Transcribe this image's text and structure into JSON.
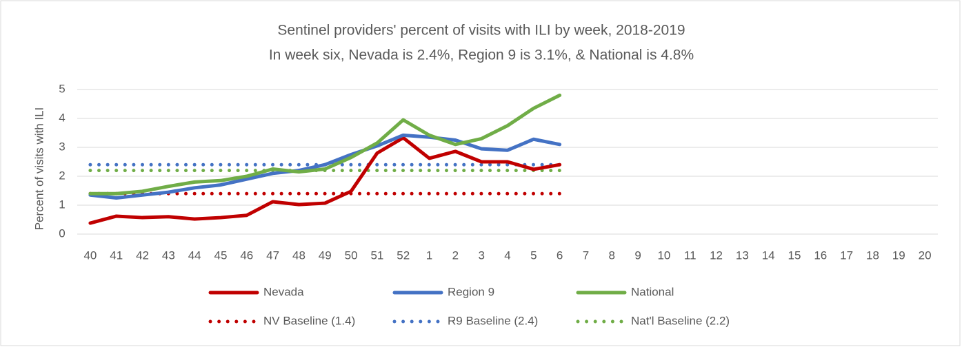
{
  "chart_data": {
    "type": "line",
    "title": "Sentinel providers' percent of visits with ILI by week, 2018-2019",
    "subtitle": "In week six, Nevada is 2.4%, Region 9 is 3.1%, & National is 4.8%",
    "y_label": "Percent of visits with ILI",
    "categories": [
      "40",
      "41",
      "42",
      "43",
      "44",
      "45",
      "46",
      "47",
      "48",
      "49",
      "50",
      "51",
      "52",
      "1",
      "2",
      "3",
      "4",
      "5",
      "6",
      "7",
      "8",
      "9",
      "10",
      "11",
      "12",
      "13",
      "14",
      "15",
      "16",
      "17",
      "18",
      "19",
      "20"
    ],
    "ylim": [
      0,
      5
    ],
    "yticks": [
      0,
      1,
      2,
      3,
      4,
      5
    ],
    "grid": true,
    "legend": "bottom",
    "series": [
      {
        "name": "Nevada",
        "color": "#c00000",
        "style": "solid",
        "values": [
          0.38,
          0.62,
          0.57,
          0.6,
          0.52,
          0.57,
          0.65,
          1.12,
          1.02,
          1.07,
          1.48,
          2.8,
          3.33,
          2.62,
          2.86,
          2.5,
          2.5,
          2.24,
          2.4,
          null,
          null,
          null,
          null,
          null,
          null,
          null,
          null,
          null,
          null,
          null,
          null,
          null,
          null
        ]
      },
      {
        "name": "Region 9",
        "color": "#4472c4",
        "style": "solid",
        "values": [
          1.35,
          1.25,
          1.35,
          1.45,
          1.6,
          1.7,
          1.9,
          2.1,
          2.2,
          2.4,
          2.75,
          3.05,
          3.42,
          3.35,
          3.25,
          2.95,
          2.9,
          3.28,
          3.1,
          null,
          null,
          null,
          null,
          null,
          null,
          null,
          null,
          null,
          null,
          null,
          null,
          null,
          null
        ]
      },
      {
        "name": "National",
        "color": "#70ad47",
        "style": "solid",
        "values": [
          1.4,
          1.4,
          1.48,
          1.65,
          1.8,
          1.85,
          2.0,
          2.25,
          2.15,
          2.25,
          2.65,
          3.15,
          3.95,
          3.42,
          3.1,
          3.3,
          3.75,
          4.35,
          4.8,
          null,
          null,
          null,
          null,
          null,
          null,
          null,
          null,
          null,
          null,
          null,
          null,
          null,
          null
        ]
      },
      {
        "name": "NV Baseline (1.4)",
        "color": "#c00000",
        "style": "dotted",
        "values": [
          1.4,
          1.4,
          1.4,
          1.4,
          1.4,
          1.4,
          1.4,
          1.4,
          1.4,
          1.4,
          1.4,
          1.4,
          1.4,
          1.4,
          1.4,
          1.4,
          1.4,
          1.4,
          1.4,
          null,
          null,
          null,
          null,
          null,
          null,
          null,
          null,
          null,
          null,
          null,
          null,
          null,
          null
        ]
      },
      {
        "name": "R9 Baseline (2.4)",
        "color": "#4472c4",
        "style": "dotted",
        "values": [
          2.4,
          2.4,
          2.4,
          2.4,
          2.4,
          2.4,
          2.4,
          2.4,
          2.4,
          2.4,
          2.4,
          2.4,
          2.4,
          2.4,
          2.4,
          2.4,
          2.4,
          2.4,
          2.4,
          null,
          null,
          null,
          null,
          null,
          null,
          null,
          null,
          null,
          null,
          null,
          null,
          null,
          null
        ]
      },
      {
        "name": "Nat'l Baseline (2.2)",
        "color": "#70ad47",
        "style": "dotted",
        "values": [
          2.2,
          2.2,
          2.2,
          2.2,
          2.2,
          2.2,
          2.2,
          2.2,
          2.2,
          2.2,
          2.2,
          2.2,
          2.2,
          2.2,
          2.2,
          2.2,
          2.2,
          2.2,
          2.2,
          null,
          null,
          null,
          null,
          null,
          null,
          null,
          null,
          null,
          null,
          null,
          null,
          null,
          null
        ]
      }
    ]
  }
}
